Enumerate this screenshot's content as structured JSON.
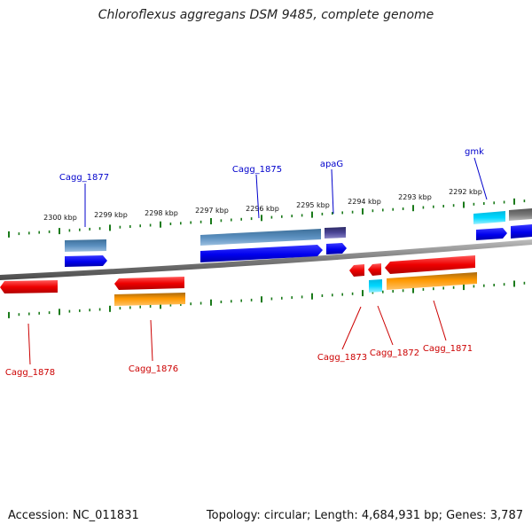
{
  "title": "Chloroflexus aggregans DSM 9485, complete genome",
  "footer": {
    "accession": "Accession: NC_011831",
    "stats": "Topology: circular; Length: 4,684,931 bp; Genes: 3,787"
  },
  "scale_labels": [
    "2300 kbp",
    "2299 kbp",
    "2298 kbp",
    "2297 kbp",
    "2296 kbp",
    "2295 kbp",
    "2294 kbp",
    "2293 kbp",
    "2292 kbp"
  ],
  "genes": {
    "cagg_1877": "Cagg_1877",
    "cagg_1875": "Cagg_1875",
    "apag": "apaG",
    "gmk": "gmk",
    "cagg_1878": "Cagg_1878",
    "cagg_1876": "Cagg_1876",
    "cagg_1873": "Cagg_1873",
    "cagg_1872": "Cagg_1872",
    "cagg_1871": "Cagg_1871"
  },
  "colors": {
    "forward_gene": "#0000ee",
    "reverse_gene": "#ee0000",
    "forward_label": "#0000cc",
    "reverse_label": "#cc0000",
    "tick": "#1a7a1a",
    "backbone": "#7a7a7a"
  }
}
